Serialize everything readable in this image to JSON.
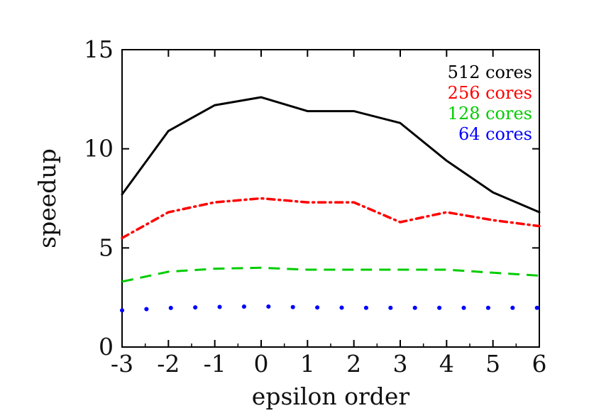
{
  "chart_data": {
    "type": "line",
    "title": "",
    "xlabel": "epsilon order",
    "ylabel": "speedup",
    "xlim": [
      -3,
      6
    ],
    "ylim": [
      0,
      15
    ],
    "grid": false,
    "legend_placement": "top-right",
    "x_ticks": [
      "-3",
      "-2",
      "-1",
      "0",
      "1",
      "2",
      "3",
      "4",
      "5",
      "6"
    ],
    "y_ticks": [
      "0",
      "5",
      "10",
      "15"
    ],
    "series": [
      {
        "name": "512 cores",
        "color": "#000000",
        "style": "solid",
        "x": [
          -3,
          -2,
          -1,
          0,
          1,
          2,
          3,
          4,
          5,
          6
        ],
        "y": [
          7.7,
          10.9,
          12.2,
          12.6,
          11.9,
          11.9,
          11.3,
          9.4,
          7.8,
          6.8
        ]
      },
      {
        "name": "256 cores",
        "color": "#ff0000",
        "style": "dashdot",
        "x": [
          -3,
          -2,
          -1,
          0,
          1,
          2,
          3,
          4,
          5,
          6
        ],
        "y": [
          5.5,
          6.8,
          7.3,
          7.5,
          7.3,
          7.3,
          6.3,
          6.8,
          6.4,
          6.1
        ]
      },
      {
        "name": "128 cores",
        "color": "#00cc00",
        "style": "dashed",
        "x": [
          -3,
          -2,
          -1,
          0,
          1,
          2,
          3,
          4,
          5,
          6
        ],
        "y": [
          3.3,
          3.8,
          3.95,
          4.0,
          3.9,
          3.9,
          3.9,
          3.9,
          3.75,
          3.6
        ]
      },
      {
        "name": "64 cores",
        "color": "#0000ff",
        "style": "dotted",
        "x": [
          -3,
          -2,
          -1,
          0,
          1,
          2,
          3,
          4,
          5,
          6
        ],
        "y": [
          1.85,
          1.97,
          2.02,
          2.05,
          2.0,
          1.98,
          1.98,
          1.98,
          1.98,
          1.98
        ]
      }
    ]
  }
}
